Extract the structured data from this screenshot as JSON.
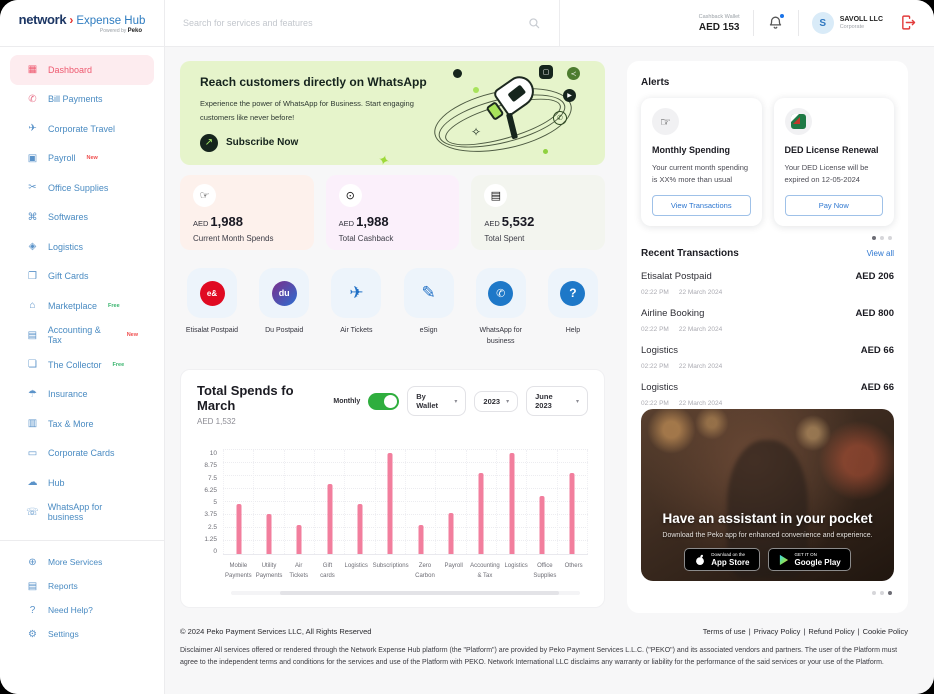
{
  "header": {
    "logo": {
      "brand": "network",
      "arrow": "›",
      "product": "Expense Hub",
      "powered_by": "Powered by ",
      "powered_brand": "Peko"
    },
    "search": {
      "placeholder": "Search for services and features"
    },
    "wallet": {
      "label": "Cashback Wallet",
      "value": "AED 153"
    },
    "user": {
      "initial": "S",
      "name": "SAVOLL LLC",
      "type": "Corporate"
    }
  },
  "sidebar": {
    "items": [
      {
        "label": "Dashboard",
        "glyph": "▦",
        "badge": ""
      },
      {
        "label": "Bill Payments",
        "glyph": "✆",
        "badge": ""
      },
      {
        "label": "Corporate Travel",
        "glyph": "✈",
        "badge": ""
      },
      {
        "label": "Payroll",
        "glyph": "▣",
        "badge": "New"
      },
      {
        "label": "Office Supplies",
        "glyph": "✂",
        "badge": ""
      },
      {
        "label": "Softwares",
        "glyph": "⌘",
        "badge": ""
      },
      {
        "label": "Logistics",
        "glyph": "◈",
        "badge": ""
      },
      {
        "label": "Gift Cards",
        "glyph": "❐",
        "badge": ""
      },
      {
        "label": "Marketplace",
        "glyph": "⌂",
        "badge": "Free"
      },
      {
        "label": "Accounting & Tax",
        "glyph": "▤",
        "badge": "New"
      },
      {
        "label": "The Collector",
        "glyph": "❏",
        "badge": "Free"
      },
      {
        "label": "Insurance",
        "glyph": "☂",
        "badge": ""
      },
      {
        "label": "Tax & More",
        "glyph": "▥",
        "badge": ""
      },
      {
        "label": "Corporate Cards",
        "glyph": "▭",
        "badge": ""
      },
      {
        "label": "Hub",
        "glyph": "☁",
        "badge": ""
      },
      {
        "label": "WhatsApp for business",
        "glyph": "☏",
        "badge": ""
      }
    ],
    "bottom_items": [
      {
        "label": "More Services",
        "glyph": "⊕"
      },
      {
        "label": "Reports",
        "glyph": "▤"
      },
      {
        "label": "Need Help?",
        "glyph": "?"
      },
      {
        "label": "Settings",
        "glyph": "⚙"
      }
    ]
  },
  "banner": {
    "title": "Reach customers directly on WhatsApp",
    "line1": "Experience the power of WhatsApp for Business. Start engaging",
    "line2": "customers like never before!",
    "cta": "Subscribe Now",
    "cta_icon": "↗"
  },
  "stats": [
    {
      "currency": "AED",
      "value": "1,988",
      "label": "Current Month Spends",
      "glyph": "☞"
    },
    {
      "currency": "AED",
      "value": "1,988",
      "label": "Total Cashback",
      "glyph": "⊙"
    },
    {
      "currency": "AED",
      "value": "5,532",
      "label": "Total Spent",
      "glyph": "▤"
    }
  ],
  "quick_actions": [
    {
      "label": "Etisalat Postpaid",
      "badge_text": "e&"
    },
    {
      "label": "Du Postpaid",
      "badge_text": "du"
    },
    {
      "label": "Air Tickets",
      "glyph": "✈"
    },
    {
      "label": "eSign",
      "glyph": "✎"
    },
    {
      "label": "WhatsApp for business",
      "glyph": "✆"
    },
    {
      "label": "Help",
      "glyph": "?"
    }
  ],
  "chart": {
    "title": "Total Spends fo March",
    "subtitle": "AED 1,532",
    "toggle_label": "Monthly",
    "filters": [
      "By Wallet",
      "2023",
      "June 2023"
    ],
    "chevron": "▾",
    "chart_data": {
      "type": "bar",
      "title": "Total Spends fo March",
      "xlabel": "",
      "ylabel": "",
      "categories": [
        "Mobile Payments",
        "Utility Payments",
        "Air Tickets",
        "Gift cards",
        "Logistics",
        "Subscriptions",
        "Zero Carbon",
        "Payroll",
        "Accounting & Tax",
        "Logistics",
        "Office Supplies",
        "Others"
      ],
      "values": [
        4.8,
        3.8,
        2.8,
        6.7,
        4.8,
        9.7,
        2.8,
        3.9,
        7.8,
        9.7,
        5.6,
        7.8
      ],
      "yticks": [
        0,
        1.25,
        2.5,
        3.75,
        5,
        6.25,
        7.5,
        8.75,
        10
      ],
      "ylim": [
        0,
        10
      ],
      "bar_color": "#f27e9d",
      "grid": true,
      "legend": false
    }
  },
  "alerts": {
    "heading": "Alerts",
    "cards": [
      {
        "title": "Monthly Spending",
        "text": "Your current month spending is XX% more than usual",
        "button": "View Transactions",
        "icon_glyph": "☞"
      },
      {
        "title": "DED License Renewal",
        "text": "Your DED License  will be expired on 12-05-2024",
        "button": "Pay Now"
      }
    ]
  },
  "transactions": {
    "heading": "Recent Transactions",
    "view_all": "View all",
    "items": [
      {
        "name": "Etisalat Postpaid",
        "amount": "AED 206",
        "time": "02:22 PM",
        "date": "22 March 2024"
      },
      {
        "name": "Airline Booking",
        "amount": "AED 800",
        "time": "02:22 PM",
        "date": "22 March 2024"
      },
      {
        "name": "Logistics",
        "amount": "AED 66",
        "time": "02:22 PM",
        "date": "22 March 2024"
      },
      {
        "name": "Logistics",
        "amount": "AED 66",
        "time": "02:22 PM",
        "date": "22 March 2024"
      }
    ]
  },
  "promo": {
    "title": "Have an assistant in your pocket",
    "subtitle": "Download the Peko app for enhanced convenience and experience.",
    "appstore_small": "Download on the",
    "appstore_big": "App Store",
    "gplay_small": "GET IT ON",
    "gplay_big": "Google Play"
  },
  "footer": {
    "copyright": "© 2024 Peko Payment Services LLC, All Rights Reserved",
    "links": [
      "Terms of use",
      "Privacy Policy",
      "Refund Policy",
      "Cookie Policy"
    ],
    "separator": "|",
    "disclaimer": "Disclaimer All services offered or rendered through the Network Expense Hub platform (the \"Platform\") are provided by Peko Payment Services L.L.C. (\"PEKO\") and its associated vendors and partners. The user of the Platform must agree to the independent terms and conditions for the services and use of the Platform with PEKO. Network International LLC disclaims any warranty or liability for the performance of the said services or your use of the Platform."
  },
  "colors": {
    "accent_pink": "#ee5a70",
    "sidebar_blue": "#4a8bc2",
    "bar_pink": "#f27e9d",
    "toggle_green": "#2fae3e",
    "banner_green": "#e6f4cb",
    "badge_new": "#f04f4f",
    "badge_free": "#35b36b",
    "link_blue": "#2e77d0",
    "logout_red": "#e23b3b"
  }
}
